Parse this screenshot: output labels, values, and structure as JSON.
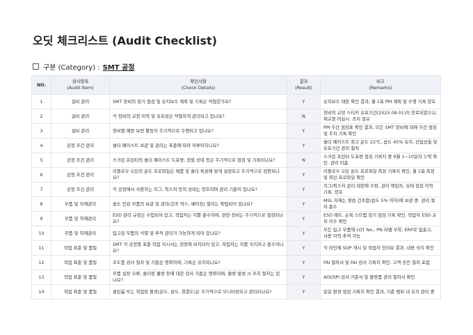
{
  "title": "오딧 체크리스트 (Audit Checklist)",
  "category": {
    "label": "구분 (Category) :",
    "value": "SMT 공정"
  },
  "columns": [
    {
      "ko": "NO.",
      "en": ""
    },
    {
      "ko": "검사항목",
      "en": "(Audit Item)"
    },
    {
      "ko": "확인사항",
      "en": "(Check Details)"
    },
    {
      "ko": "결과",
      "en": "(Result)"
    },
    {
      "ko": "비고",
      "en": "(Remarks)"
    }
  ],
  "rows": [
    {
      "no": "1",
      "item": "설비 관리",
      "details": "SMT 장비의 정기 점검 및 유지보수 계획 및 기록은 적절한가요?",
      "result": "Y",
      "remarks": "유지보수 대장 확인 결과, 월 1회 PM 계획 및 수행 기록 양호"
    },
    {
      "no": "2",
      "item": "설비 관리",
      "details": "각 장비의 교정 이력 및 유효성은 적절하게 관리되고 있나요?",
      "result": "N",
      "remarks": "장비의 교정 스티커 유효기간(2025.08.01)이 만료되었으나, 재교정 미실시. 조치 필요"
    },
    {
      "no": "3",
      "item": "설비 관리",
      "details": "장비별 예방 보전 활동이 주기적으로 수행되고 있나요?",
      "result": "Y",
      "remarks": "PM 주간 점검표 확인 결과, 모든 SMT 장비에 대해 주간 점검 및 조치 기록 확인"
    },
    {
      "no": "4",
      "item": "공정 조건 관리",
      "details": "솔더 페이스트 보관 및 관리는 표준에 따라 이루어지나요?",
      "result": "Y",
      "remarks": "솔더 페이스트 창고 온도 22℃, 습도 45% 유지. 선입선출 및 유효기간 관리 철저"
    },
    {
      "no": "5",
      "item": "공정 조건 관리",
      "details": "스크린 프린터의 솔더 페이스트 도포량, 정렬 상태 등은 주기적으로 점검 및 기록되나요?",
      "result": "N",
      "remarks": "스크린 프린터 도포량 점검 기록지 중 9월 1~10일자 누락 확인. 관리 미흡"
    },
    {
      "no": "6",
      "item": "공정 조건 관리",
      "details": "리플로우 오븐의 온도 프로파일은 제품 및 솔더 특성에 맞게 설정되고 주기적으로 검증되나요?",
      "result": "Y",
      "remarks": "리플로우 오븐 온도 프로파일 측정 기록지 확인, 월 1회 측정 및 최신 프로파일 확인"
    },
    {
      "no": "7",
      "item": "공정 조건 관리",
      "details": "각 공정에서 사용하는 지그, 픽스처 등의 상태는 양호하며 관리 기준이 있나요?",
      "result": "Y",
      "remarks": "지그/픽스처 관리 대장에 수량, 관리 책임자, 상태 점검 이력 기록. 양호"
    },
    {
      "no": "8",
      "item": "부품 및 자재관리",
      "details": "습도 민감 부품의 보관 및 관리(건조 박스, 베이킹) 절차는 확립되어 있나요?",
      "result": "Y",
      "remarks": "MSL 자재는 항습 건조함(습도 5% 이하)에 보관 중. 관리 절차 준수"
    },
    {
      "no": "9",
      "item": "부품 및 자재관리",
      "details": "ESD 관리 규정은 수립되어 있고, 작업자는 이를 준수하며, 관련 장비는 주기적으로 점검되나요?",
      "result": "Y",
      "remarks": "ESD 매트, 손목 스트랩 정기 점검 기록 확인. 작업자 ESD 교육 이수 확인"
    },
    {
      "no": "10",
      "item": "부품 및 자재관리",
      "details": "입고된 부품의 식별 및 추적 관리가 가능하게 되어 있나요?",
      "result": "Y",
      "remarks": "모든 입고 부품에 LOT No., PN 라벨 부착. ERP로 입출고, 사용 이력 추적 가능"
    },
    {
      "no": "11",
      "item": "작업 표준 및 품질",
      "details": "SMT 각 공정별 표준 작업 지시서는 현장에 비치되어 있고, 작업자는 이를 숙지하고 준수하나요?",
      "result": "Y",
      "remarks": "각 라인에 SOP 게시 및 작업자 인터뷰 결과, 내용 숙지 확인"
    },
    {
      "no": "12",
      "item": "작업 표준 및 품질",
      "details": "초도품 검사 절차 및 기준은 명확하며, 기록은 유지되나요?",
      "result": "Y",
      "remarks": "FAI 절차서 및 FAI 검사 기록지 확인. 고객 승인 절차 포함"
    },
    {
      "no": "13",
      "item": "작업 표준 및 품질",
      "details": "부품 실장 오류, 솔더링 불량 등에 대한 검사 기준은 명확하며, 불량 발생 시 조치 절차는 있나요?",
      "result": "Y",
      "remarks": "AOI/SPI 검사 기준서 및 불량품 관리 절차서 확인"
    },
    {
      "no": "14",
      "item": "작업 표준 및 품질",
      "details": "클린룸 또는 작업장 환경(온도, 습도, 청결도)은 주기적으로 모니터링되고 관리되나요?",
      "result": "Y",
      "remarks": "일일 환경 점검 기록지 확인 결과, 기준 범위 내 유지 관리 중"
    }
  ]
}
